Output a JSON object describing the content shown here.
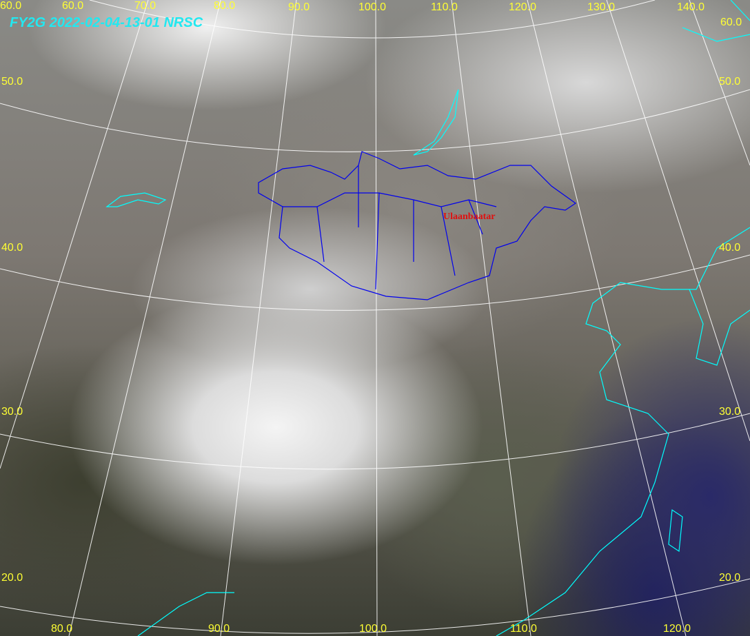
{
  "title": "FY2G  2022-02-04-13-01  NRSC",
  "city": "Ulaanbaatar",
  "lon_labels_top": [
    "60.0",
    "60.0",
    "70.0",
    "80.0",
    "90.0",
    "100.0",
    "110.0",
    "120.0",
    "130.0",
    "140.0"
  ],
  "lon_labels_bottom": [
    "80.0",
    "90.0",
    "100.0",
    "110.0",
    "120.0"
  ],
  "lat_labels_left": [
    "50.0",
    "40.0",
    "30.0",
    "20.0"
  ],
  "lat_labels_right": [
    "60.0",
    "50.0",
    "40.0",
    "30.0",
    "20.0"
  ],
  "colors": {
    "graticule": "#ffffff",
    "labels": "#ffff33",
    "coastline": "#00ffff",
    "border": "#0000ff",
    "title": "#22e8f0",
    "city": "#e01010"
  }
}
